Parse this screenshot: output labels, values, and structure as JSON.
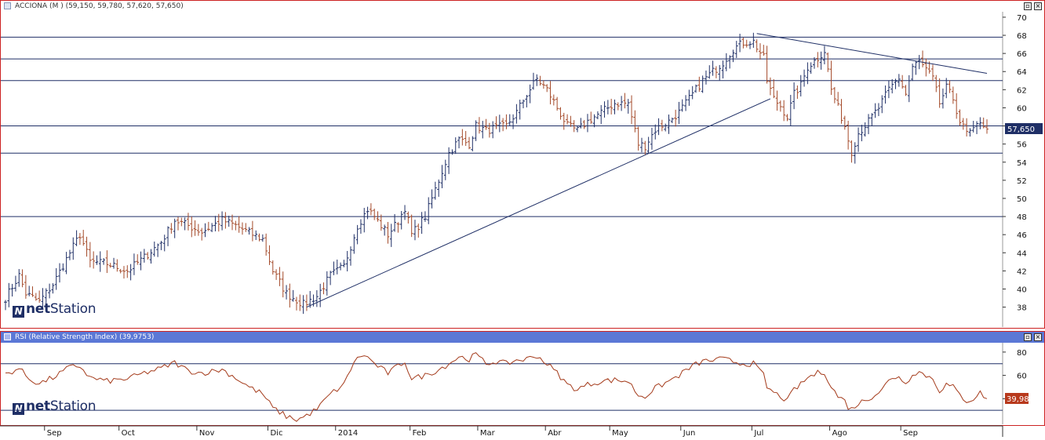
{
  "price_panel": {
    "title": "ACCIONA (M ) (59,150, 59,780, 57,620, 57,650)",
    "last_value_label": "57,650",
    "logo_text_bold": "net",
    "logo_text": "Station"
  },
  "rsi_panel": {
    "title": "RSI (Relative Strength Index) (39,9753)",
    "last_value_label": "39,98",
    "logo_text_bold": "net",
    "logo_text": "Station"
  },
  "colors": {
    "up_bar": "#1f2f66",
    "down_bar": "#a44a2a",
    "rsi_line": "#a43a1a",
    "level_line": "#1f2f66",
    "panel_border": "#cc2222",
    "rsi_title_bg": "#5b78d6"
  },
  "icons": [
    "window-icon",
    "minimize-icon",
    "close-icon"
  ],
  "chart_data": [
    {
      "type": "ohlc",
      "y_ticks": [
        38,
        40,
        42,
        44,
        46,
        48,
        50,
        52,
        54,
        56,
        58,
        60,
        62,
        64,
        66,
        68,
        70
      ],
      "ylim": [
        35.8,
        70.6
      ],
      "grid": false,
      "month_labels": [
        {
          "label": "Sep",
          "idx": 12
        },
        {
          "label": "Oct",
          "idx": 34
        },
        {
          "label": "Nov",
          "idx": 57
        },
        {
          "label": "Dic",
          "idx": 78
        },
        {
          "label": "2014",
          "idx": 98
        },
        {
          "label": "Feb",
          "idx": 120
        },
        {
          "label": "Mar",
          "idx": 140
        },
        {
          "label": "Abr",
          "idx": 160
        },
        {
          "label": "May",
          "idx": 179
        },
        {
          "label": "Jun",
          "idx": 200
        },
        {
          "label": "Jul",
          "idx": 221
        },
        {
          "label": "Ago",
          "idx": 244
        },
        {
          "label": "Sep",
          "idx": 265
        }
      ],
      "horizontal_levels": [
        67.8,
        65.4,
        63.0,
        58.0,
        55.0,
        48.0
      ],
      "trendlines": [
        {
          "from": [
            89,
            38.0
          ],
          "to": [
            226,
            61.0
          ]
        },
        {
          "from": [
            222,
            68.2
          ],
          "to": [
            290,
            63.8
          ]
        }
      ],
      "anchors": [
        [
          0,
          39
        ],
        [
          4,
          41.5
        ],
        [
          6,
          39.5
        ],
        [
          10,
          38.6
        ],
        [
          14,
          40.5
        ],
        [
          19,
          44
        ],
        [
          22,
          46
        ],
        [
          25,
          43
        ],
        [
          30,
          42.8
        ],
        [
          36,
          42
        ],
        [
          41,
          43.5
        ],
        [
          46,
          45.2
        ],
        [
          50,
          47.6
        ],
        [
          54,
          47
        ],
        [
          58,
          46.3
        ],
        [
          64,
          47.6
        ],
        [
          68,
          47
        ],
        [
          72,
          46.2
        ],
        [
          76,
          45.5
        ],
        [
          79,
          42
        ],
        [
          83,
          39.5
        ],
        [
          88,
          38.3
        ],
        [
          92,
          39.2
        ],
        [
          96,
          41.5
        ],
        [
          100,
          42.5
        ],
        [
          104,
          47
        ],
        [
          107,
          48.8
        ],
        [
          109,
          48
        ],
        [
          113,
          46
        ],
        [
          116,
          47.5
        ],
        [
          118,
          49
        ],
        [
          120,
          46
        ],
        [
          124,
          48
        ],
        [
          128,
          52
        ],
        [
          131,
          55
        ],
        [
          134,
          56.5
        ],
        [
          137,
          56
        ],
        [
          139,
          58
        ],
        [
          142,
          57.5
        ],
        [
          145,
          57.8
        ],
        [
          148,
          58
        ],
        [
          151,
          59.5
        ],
        [
          154,
          61.5
        ],
        [
          157,
          63.2
        ],
        [
          160,
          62
        ],
        [
          163,
          60
        ],
        [
          166,
          58
        ],
        [
          169,
          57.5
        ],
        [
          172,
          58.5
        ],
        [
          176,
          59.5
        ],
        [
          180,
          60.5
        ],
        [
          184,
          60.5
        ],
        [
          187,
          56
        ],
        [
          189,
          55.8
        ],
        [
          192,
          57.6
        ],
        [
          196,
          58.5
        ],
        [
          199,
          59.5
        ],
        [
          203,
          61.5
        ],
        [
          206,
          63
        ],
        [
          209,
          64
        ],
        [
          212,
          65
        ],
        [
          215,
          66.5
        ],
        [
          218,
          67.2
        ],
        [
          221,
          67.3
        ],
        [
          224,
          65.5
        ],
        [
          225,
          63
        ],
        [
          227,
          61
        ],
        [
          229,
          60.2
        ],
        [
          231,
          59
        ],
        [
          233,
          61.5
        ],
        [
          235,
          62.5
        ],
        [
          237,
          64.5
        ],
        [
          240,
          65.5
        ],
        [
          242,
          66.3
        ],
        [
          244,
          62
        ],
        [
          246,
          60
        ],
        [
          248,
          58
        ],
        [
          249,
          56.5
        ],
        [
          250,
          55.2
        ],
        [
          252,
          57.2
        ],
        [
          255,
          58.5
        ],
        [
          258,
          60
        ],
        [
          261,
          62
        ],
        [
          264,
          63.3
        ],
        [
          266,
          61.5
        ],
        [
          268,
          64.5
        ],
        [
          270,
          65.1
        ],
        [
          272,
          64.2
        ],
        [
          274,
          63.2
        ],
        [
          276,
          60.5
        ],
        [
          278,
          62.2
        ],
        [
          280,
          61
        ],
        [
          282,
          58.5
        ],
        [
          284,
          57.2
        ],
        [
          286,
          57.4
        ],
        [
          288,
          58.6
        ],
        [
          290,
          57.65
        ]
      ],
      "n_bars": 291
    },
    {
      "type": "line",
      "series": "RSI",
      "y_ticks": [
        40,
        60,
        80
      ],
      "ylim": [
        18,
        88
      ],
      "horizontal_levels": [
        70,
        30
      ],
      "last_value": 39.98,
      "anchors": [
        [
          0,
          61
        ],
        [
          4,
          66
        ],
        [
          7,
          57
        ],
        [
          10,
          53
        ],
        [
          14,
          58
        ],
        [
          19,
          67
        ],
        [
          22,
          68
        ],
        [
          25,
          58
        ],
        [
          30,
          55
        ],
        [
          36,
          57
        ],
        [
          41,
          62
        ],
        [
          46,
          66
        ],
        [
          50,
          71
        ],
        [
          54,
          64
        ],
        [
          58,
          62
        ],
        [
          64,
          65
        ],
        [
          68,
          58
        ],
        [
          72,
          50
        ],
        [
          76,
          44
        ],
        [
          79,
          32
        ],
        [
          83,
          25
        ],
        [
          86,
          22
        ],
        [
          88,
          24
        ],
        [
          92,
          31
        ],
        [
          96,
          44
        ],
        [
          100,
          52
        ],
        [
          103,
          72
        ],
        [
          106,
          78
        ],
        [
          109,
          70
        ],
        [
          113,
          62
        ],
        [
          116,
          68
        ],
        [
          118,
          72
        ],
        [
          120,
          57
        ],
        [
          124,
          60
        ],
        [
          128,
          65
        ],
        [
          131,
          70
        ],
        [
          134,
          76
        ],
        [
          137,
          74
        ],
        [
          139,
          78
        ],
        [
          142,
          70
        ],
        [
          145,
          72
        ],
        [
          148,
          70
        ],
        [
          151,
          73
        ],
        [
          154,
          74
        ],
        [
          157,
          77
        ],
        [
          160,
          70
        ],
        [
          163,
          62
        ],
        [
          166,
          52
        ],
        [
          169,
          48
        ],
        [
          172,
          52
        ],
        [
          176,
          55
        ],
        [
          180,
          56
        ],
        [
          184,
          55
        ],
        [
          187,
          43
        ],
        [
          189,
          42
        ],
        [
          192,
          49
        ],
        [
          196,
          55
        ],
        [
          199,
          60
        ],
        [
          203,
          68
        ],
        [
          206,
          72
        ],
        [
          209,
          73
        ],
        [
          212,
          74
        ],
        [
          215,
          72
        ],
        [
          218,
          70
        ],
        [
          221,
          70
        ],
        [
          224,
          60
        ],
        [
          225,
          50
        ],
        [
          227,
          45
        ],
        [
          229,
          42
        ],
        [
          231,
          38
        ],
        [
          233,
          48
        ],
        [
          235,
          52
        ],
        [
          237,
          58
        ],
        [
          240,
          62
        ],
        [
          242,
          63
        ],
        [
          244,
          50
        ],
        [
          246,
          42
        ],
        [
          248,
          38
        ],
        [
          249,
          33
        ],
        [
          250,
          31
        ],
        [
          252,
          36
        ],
        [
          255,
          40
        ],
        [
          258,
          46
        ],
        [
          261,
          55
        ],
        [
          264,
          60
        ],
        [
          266,
          52
        ],
        [
          268,
          62
        ],
        [
          270,
          63
        ],
        [
          272,
          60
        ],
        [
          274,
          57
        ],
        [
          276,
          47
        ],
        [
          278,
          52
        ],
        [
          280,
          50
        ],
        [
          282,
          43
        ],
        [
          284,
          38
        ],
        [
          286,
          40
        ],
        [
          288,
          45
        ],
        [
          290,
          39.98
        ]
      ],
      "n_points": 291
    }
  ]
}
